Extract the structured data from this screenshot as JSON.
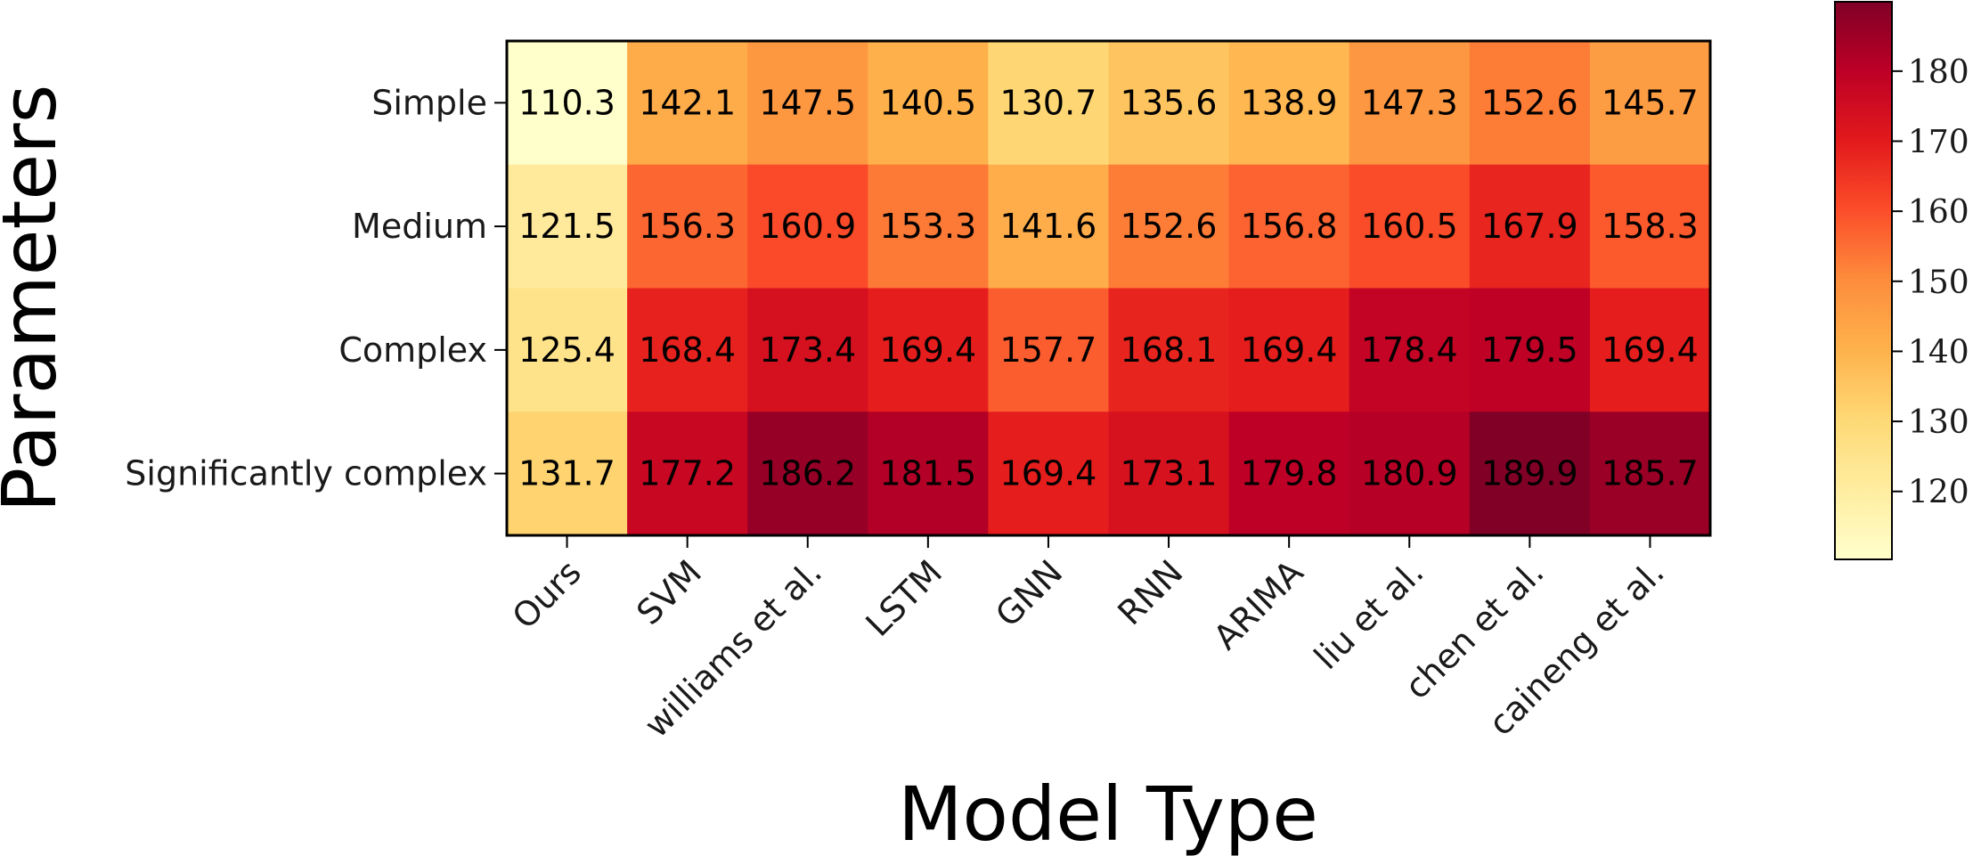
{
  "chart_data": {
    "type": "heatmap",
    "xlabel": "Model Type",
    "ylabel": "Parameters",
    "x_categories": [
      "Ours",
      "SVM",
      "williams et al.",
      "LSTM",
      "GNN",
      "RNN",
      "ARIMA",
      "liu et al.",
      "chen et al.",
      "caineng et al."
    ],
    "y_categories": [
      "Simple",
      "Medium",
      "Complex",
      "Significantly complex"
    ],
    "values": [
      [
        110.3,
        142.1,
        147.5,
        140.5,
        130.7,
        135.6,
        138.9,
        147.3,
        152.6,
        145.7
      ],
      [
        121.5,
        156.3,
        160.9,
        153.3,
        141.6,
        152.6,
        156.8,
        160.5,
        167.9,
        158.3
      ],
      [
        125.4,
        168.4,
        173.4,
        169.4,
        157.7,
        168.1,
        169.4,
        178.4,
        179.5,
        169.4
      ],
      [
        131.7,
        177.2,
        186.2,
        181.5,
        169.4,
        173.1,
        179.8,
        180.9,
        189.9,
        185.7
      ]
    ],
    "colormap": "YlOrRd",
    "color_range": [
      110.3,
      189.9
    ],
    "colorbar_ticks": [
      120,
      130,
      140,
      150,
      160,
      170,
      180
    ],
    "legend": "colorbar-right",
    "grid": false
  }
}
